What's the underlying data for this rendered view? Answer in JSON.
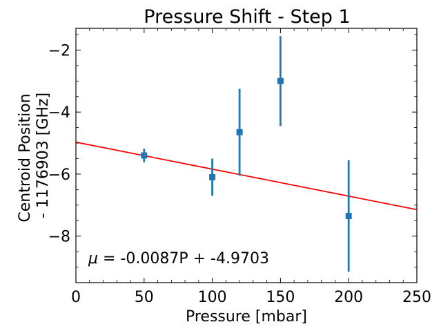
{
  "chart_data": {
    "type": "scatter",
    "title": "Pressure Shift - Step 1",
    "xlabel": "Pressure [mbar]",
    "ylabel_line1": "Centroid Position",
    "ylabel_line2": "- 1176903  [GHz]",
    "xlim": [
      0,
      250
    ],
    "ylim": [
      -9.5,
      -1.3
    ],
    "xticks": [
      0,
      50,
      100,
      150,
      200,
      250
    ],
    "xtick_labels": [
      "0",
      "50",
      "100",
      "150",
      "200",
      "250"
    ],
    "yticks": [
      -8,
      -6,
      -4,
      -2
    ],
    "ytick_labels": [
      "−8",
      "−6",
      "−4",
      "−2"
    ],
    "grid": false,
    "series": [
      {
        "color": "#1f77b4",
        "marker": "square",
        "points": [
          {
            "x": 50,
            "y": -5.4,
            "yerr": 0.22
          },
          {
            "x": 100,
            "y": -6.1,
            "yerr": 0.6
          },
          {
            "x": 120,
            "y": -4.65,
            "yerr": 1.4
          },
          {
            "x": 150,
            "y": -3.0,
            "yerr": 1.45
          },
          {
            "x": 200,
            "y": -7.35,
            "yerr": 1.8
          }
        ]
      }
    ],
    "fit_line": {
      "color": "#ff0000",
      "slope": -0.0087,
      "intercept": -4.9703
    },
    "annotation": {
      "mu": "μ",
      "rest": " = -0.0087P + -4.9703"
    }
  }
}
